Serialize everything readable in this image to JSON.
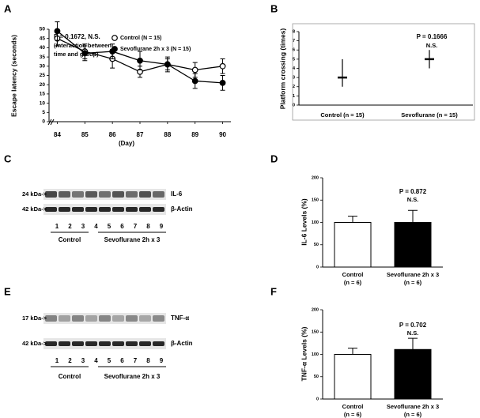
{
  "panels": [
    "A",
    "B",
    "C",
    "D",
    "E",
    "F"
  ],
  "chart_data": [
    {
      "type": "line",
      "xlabel": "(Day)",
      "ylabel": "Escape latency (seconds)",
      "annotation": [
        "P = 0.1672, N.S.",
        "(interaction between",
        "time and group)"
      ],
      "x": [
        84,
        85,
        86,
        87,
        88,
        89,
        90
      ],
      "xlim": [
        83.7,
        90.3
      ],
      "xticks": [
        84,
        85,
        86,
        87,
        88,
        89,
        90
      ],
      "ylim": [
        0,
        50
      ],
      "yticks": [
        0,
        5,
        10,
        15,
        20,
        25,
        30,
        35,
        40,
        45,
        50
      ],
      "series": [
        {
          "name": "Control (N = 15)",
          "color": "#000000",
          "marker_fill": "#ffffff",
          "values": [
            45,
            38,
            34,
            27,
            31,
            28,
            30
          ],
          "errors": [
            4,
            4,
            5,
            3,
            3,
            4,
            4
          ]
        },
        {
          "name": "Sevoflurane 2h x 3 (N = 15)",
          "color": "#000000",
          "marker_fill": "#000000",
          "values": [
            49,
            37,
            38,
            33,
            31,
            22,
            21
          ],
          "errors": [
            5,
            4,
            4,
            5,
            4,
            4,
            4
          ]
        }
      ]
    },
    {
      "type": "range",
      "ylabel": "Platform crossing (times)",
      "annotation": [
        "P = 0.1666",
        "N.S."
      ],
      "categories": [
        "Control (n = 15)",
        "Sevoflurane (n = 15)"
      ],
      "values": [
        3,
        5
      ],
      "lower": [
        2,
        4
      ],
      "upper": [
        5,
        6
      ],
      "color": "#000000",
      "ylim": [
        0,
        8
      ],
      "yticks": [
        0,
        1,
        2,
        3,
        4,
        5,
        6,
        7,
        8
      ]
    },
    {
      "type": "bar",
      "ylabel": "IL-6 Levels (%)",
      "annotation": [
        "P = 0.872",
        "N.S."
      ],
      "categories": [
        "Control",
        "Sevoflurane 2h x 3"
      ],
      "category_notes": [
        "(n = 6)",
        "(n = 6)"
      ],
      "values": [
        100,
        100
      ],
      "errors": [
        14,
        27
      ],
      "colors": [
        "#ffffff",
        "#000000"
      ],
      "ylim": [
        0,
        200
      ],
      "yticks": [
        0,
        50,
        100,
        150,
        200
      ]
    },
    {
      "type": "bar",
      "ylabel": "TNF-α Levels (%)",
      "annotation": [
        "P = 0.702",
        "N.S."
      ],
      "categories": [
        "Control",
        "Sevoflurane 2h x 3"
      ],
      "category_notes": [
        "(n = 6)",
        "(n = 6)"
      ],
      "values": [
        100,
        111
      ],
      "errors": [
        14,
        25
      ],
      "colors": [
        "#ffffff",
        "#000000"
      ],
      "ylim": [
        0,
        200
      ],
      "yticks": [
        0,
        50,
        100,
        150,
        200
      ]
    }
  ],
  "blots": [
    {
      "bands": [
        {
          "size": "24 kDa->",
          "name": "IL-6"
        },
        {
          "size": "42 kDa->",
          "name": "β-Actin"
        }
      ],
      "lanes": [
        "1",
        "2",
        "3",
        "4",
        "5",
        "6",
        "7",
        "8",
        "9"
      ],
      "groups": [
        "Control",
        "Sevoflurane 2h x 3"
      ]
    },
    {
      "bands": [
        {
          "size": "17 kDa->",
          "name": "TNF-α"
        },
        {
          "size": "42 kDa->",
          "name": "β-Actin"
        }
      ],
      "lanes": [
        "1",
        "2",
        "3",
        "4",
        "5",
        "6",
        "7",
        "8",
        "9"
      ],
      "groups": [
        "Control",
        "Sevoflurane 2h x 3"
      ]
    }
  ]
}
